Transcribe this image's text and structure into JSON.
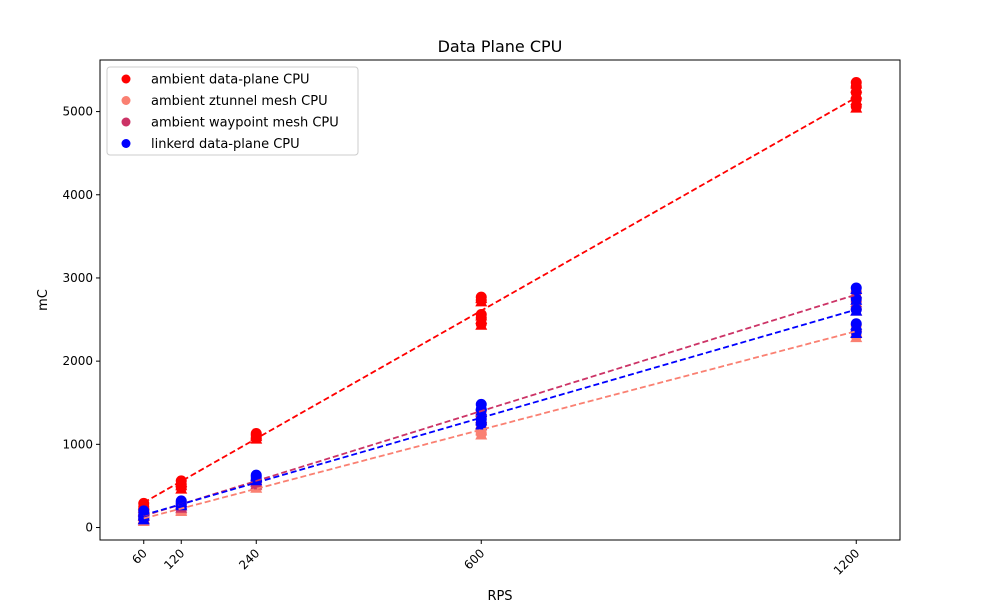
{
  "chart_data": {
    "type": "scatter",
    "title": "Data Plane CPU",
    "xlabel": "RPS",
    "ylabel": "mC",
    "x_ticks": [
      60,
      120,
      240,
      600,
      1200
    ],
    "y_ticks": [
      0,
      1000,
      2000,
      3000,
      4000,
      5000
    ],
    "xlim": [
      -10,
      1270
    ],
    "ylim": [
      -150,
      5620
    ],
    "grid": false,
    "legend_position": "top-left",
    "series": [
      {
        "name": "ambient data-plane CPU",
        "color": "#ff0000",
        "points": [
          [
            60,
            210
          ],
          [
            60,
            250
          ],
          [
            60,
            290
          ],
          [
            120,
            480
          ],
          [
            120,
            520
          ],
          [
            120,
            560
          ],
          [
            240,
            1080
          ],
          [
            240,
            1110
          ],
          [
            240,
            1130
          ],
          [
            600,
            2450
          ],
          [
            600,
            2520
          ],
          [
            600,
            2560
          ],
          [
            600,
            2730
          ],
          [
            600,
            2770
          ],
          [
            1200,
            5060
          ],
          [
            1200,
            5150
          ],
          [
            1200,
            5230
          ],
          [
            1200,
            5300
          ],
          [
            1200,
            5350
          ]
        ],
        "trend": [
          [
            60,
            300
          ],
          [
            1200,
            5170
          ]
        ]
      },
      {
        "name": "ambient ztunnel mesh CPU",
        "color": "#fa8072",
        "points": [
          [
            60,
            90
          ],
          [
            60,
            110
          ],
          [
            120,
            210
          ],
          [
            120,
            230
          ],
          [
            240,
            490
          ],
          [
            240,
            520
          ],
          [
            600,
            1130
          ],
          [
            600,
            1180
          ],
          [
            600,
            1240
          ],
          [
            1200,
            2300
          ],
          [
            1200,
            2360
          ],
          [
            1200,
            2430
          ]
        ],
        "trend": [
          [
            60,
            110
          ],
          [
            1200,
            2360
          ]
        ]
      },
      {
        "name": "ambient waypoint mesh CPU",
        "color": "#cc3366",
        "points": [
          [
            60,
            120
          ],
          [
            60,
            150
          ],
          [
            120,
            250
          ],
          [
            120,
            280
          ],
          [
            240,
            530
          ],
          [
            240,
            560
          ],
          [
            600,
            1260
          ],
          [
            600,
            1330
          ],
          [
            600,
            1400
          ],
          [
            1200,
            2620
          ],
          [
            1200,
            2720
          ],
          [
            1200,
            2830
          ]
        ],
        "trend": [
          [
            60,
            140
          ],
          [
            1200,
            2800
          ]
        ]
      },
      {
        "name": "linkerd data-plane CPU",
        "color": "#0000ff",
        "points": [
          [
            60,
            110
          ],
          [
            60,
            160
          ],
          [
            60,
            200
          ],
          [
            120,
            280
          ],
          [
            120,
            300
          ],
          [
            120,
            320
          ],
          [
            240,
            580
          ],
          [
            240,
            610
          ],
          [
            240,
            630
          ],
          [
            600,
            1250
          ],
          [
            600,
            1300
          ],
          [
            600,
            1420
          ],
          [
            600,
            1480
          ],
          [
            1200,
            2350
          ],
          [
            1200,
            2450
          ],
          [
            1200,
            2620
          ],
          [
            1200,
            2750
          ],
          [
            1200,
            2880
          ]
        ],
        "trend": [
          [
            60,
            150
          ],
          [
            1200,
            2620
          ]
        ]
      }
    ]
  }
}
